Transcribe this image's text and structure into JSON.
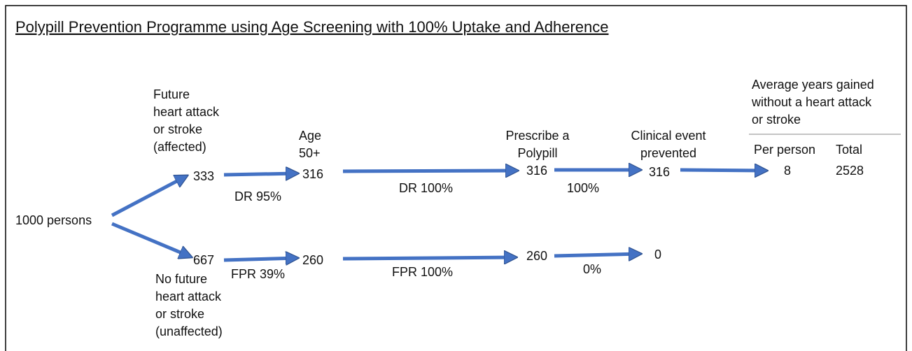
{
  "title": "Polypill Prevention Programme using Age Screening with 100% Uptake and Adherence",
  "start": "1000 persons",
  "headers": {
    "affected": [
      "Future",
      "heart attack",
      "or stroke",
      "(affected)"
    ],
    "unaffected": [
      "No future",
      "heart attack",
      "or stroke",
      "(unaffected)"
    ],
    "age": [
      "Age",
      "50+"
    ],
    "prescribe": [
      "Prescribe a",
      "Polypill"
    ],
    "prevented": [
      "Clinical event",
      "prevented"
    ],
    "years": [
      "Average years gained",
      "without a heart attack",
      "or stroke"
    ],
    "per_person": "Per person",
    "total": "Total"
  },
  "affected_row": {
    "count": 333,
    "age": 316,
    "prescribed": 316,
    "prevented": 316,
    "age_rate": "DR 95%",
    "prescribe_rate": "DR 100%",
    "prevent_rate": "100%",
    "years_per_person": 8,
    "years_total": 2528
  },
  "unaffected_row": {
    "count": 667,
    "age": 260,
    "prescribed": 260,
    "prevented": 0,
    "age_rate": "FPR 39%",
    "prescribe_rate": "FPR 100%",
    "prevent_rate": "0%"
  }
}
